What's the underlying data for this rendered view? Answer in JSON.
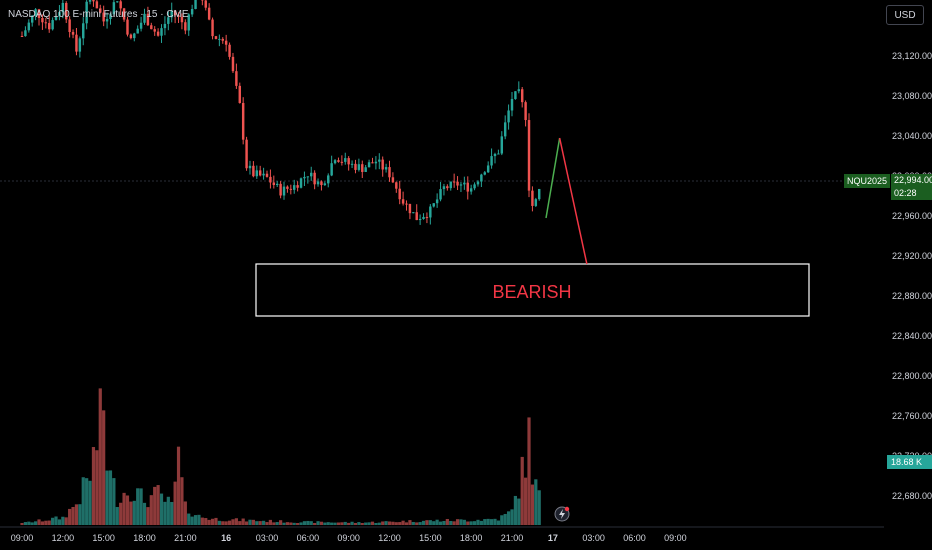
{
  "header": {
    "title": "NASDAQ 100 E-mini Futures · 15 · CME",
    "currency": "USD"
  },
  "price_tag": {
    "symbol": "NQU2025",
    "price": "22,994.00",
    "countdown": "02:28"
  },
  "volume_tag": {
    "value": "18.68 K"
  },
  "colors": {
    "up": "#26a69a",
    "down": "#ef5350",
    "background": "#000000",
    "annotation_up": "#4caf50",
    "annotation_down": "#f23645"
  },
  "chart_data": {
    "type": "candlestick",
    "title": "NASDAQ 100 E-mini Futures · 15 · CME",
    "y_ticks": [
      "23,120.00",
      "23,080.00",
      "23,040.00",
      "23,000.00",
      "22,960.00",
      "22,920.00",
      "22,880.00",
      "22,840.00",
      "22,800.00",
      "22,760.00",
      "22,720.00",
      "22,680.00"
    ],
    "y_tick_values": [
      23120,
      23080,
      23040,
      23000,
      22960,
      22920,
      22880,
      22840,
      22800,
      22760,
      22720,
      22680
    ],
    "x_ticks": [
      {
        "label": "09:00",
        "bold": false
      },
      {
        "label": "12:00",
        "bold": false
      },
      {
        "label": "15:00",
        "bold": false
      },
      {
        "label": "18:00",
        "bold": false
      },
      {
        "label": "21:00",
        "bold": false
      },
      {
        "label": "16",
        "bold": true
      },
      {
        "label": "03:00",
        "bold": false
      },
      {
        "label": "06:00",
        "bold": false
      },
      {
        "label": "09:00",
        "bold": false
      },
      {
        "label": "12:00",
        "bold": false
      },
      {
        "label": "15:00",
        "bold": false
      },
      {
        "label": "18:00",
        "bold": false
      },
      {
        "label": "21:00",
        "bold": false
      },
      {
        "label": "17",
        "bold": true
      },
      {
        "label": "03:00",
        "bold": false
      },
      {
        "label": "06:00",
        "bold": false
      },
      {
        "label": "09:00",
        "bold": false
      }
    ],
    "last_price": 22994,
    "annotation": {
      "label": "BEARISH",
      "box_range": [
        22872,
        22910
      ],
      "projection": [
        {
          "x_hours": 38.5,
          "price": 22958
        },
        {
          "x_hours": 39.5,
          "price": 23038
        },
        {
          "x_hours": 41.5,
          "price": 22912
        }
      ]
    },
    "anchors": [
      [
        0,
        23140
      ],
      [
        1,
        23165
      ],
      [
        2,
        23150
      ],
      [
        3,
        23172
      ],
      [
        4,
        23125
      ],
      [
        5,
        23185
      ],
      [
        6,
        23155
      ],
      [
        7,
        23178
      ],
      [
        8,
        23135
      ],
      [
        9,
        23160
      ],
      [
        10,
        23140
      ],
      [
        11,
        23165
      ],
      [
        12,
        23150
      ],
      [
        13,
        23190
      ],
      [
        14,
        23140
      ],
      [
        15,
        23135
      ],
      [
        16,
        23070
      ],
      [
        16.5,
        23010
      ],
      [
        17,
        23002
      ],
      [
        18,
        22998
      ],
      [
        19,
        22985
      ],
      [
        20,
        22990
      ],
      [
        21,
        23003
      ],
      [
        22,
        22990
      ],
      [
        23,
        23020
      ],
      [
        24,
        23012
      ],
      [
        25,
        23008
      ],
      [
        26,
        23015
      ],
      [
        27,
        23002
      ],
      [
        28,
        22975
      ],
      [
        29,
        22958
      ],
      [
        30,
        22965
      ],
      [
        31,
        22988
      ],
      [
        32,
        22992
      ],
      [
        33,
        22988
      ],
      [
        34,
        23008
      ],
      [
        35,
        23025
      ],
      [
        36,
        23078
      ],
      [
        36.5,
        23082
      ],
      [
        37,
        23060
      ],
      [
        37.3,
        22975
      ],
      [
        37.6,
        22968
      ],
      [
        38.2,
        22994
      ]
    ],
    "volume_anchors": [
      [
        0,
        3
      ],
      [
        3,
        12
      ],
      [
        4,
        35
      ],
      [
        5,
        80
      ],
      [
        6,
        190
      ],
      [
        6.3,
        90
      ],
      [
        7,
        45
      ],
      [
        8,
        60
      ],
      [
        9,
        40
      ],
      [
        10,
        50
      ],
      [
        11,
        30
      ],
      [
        11.5,
        105
      ],
      [
        12,
        28
      ],
      [
        13,
        14
      ],
      [
        14,
        10
      ],
      [
        16,
        8
      ],
      [
        20,
        5
      ],
      [
        25,
        4
      ],
      [
        28,
        6
      ],
      [
        30,
        7
      ],
      [
        33,
        8
      ],
      [
        35,
        10
      ],
      [
        36,
        22
      ],
      [
        37,
        105
      ],
      [
        37.3,
        150
      ],
      [
        37.6,
        65
      ],
      [
        38.2,
        45
      ]
    ]
  }
}
